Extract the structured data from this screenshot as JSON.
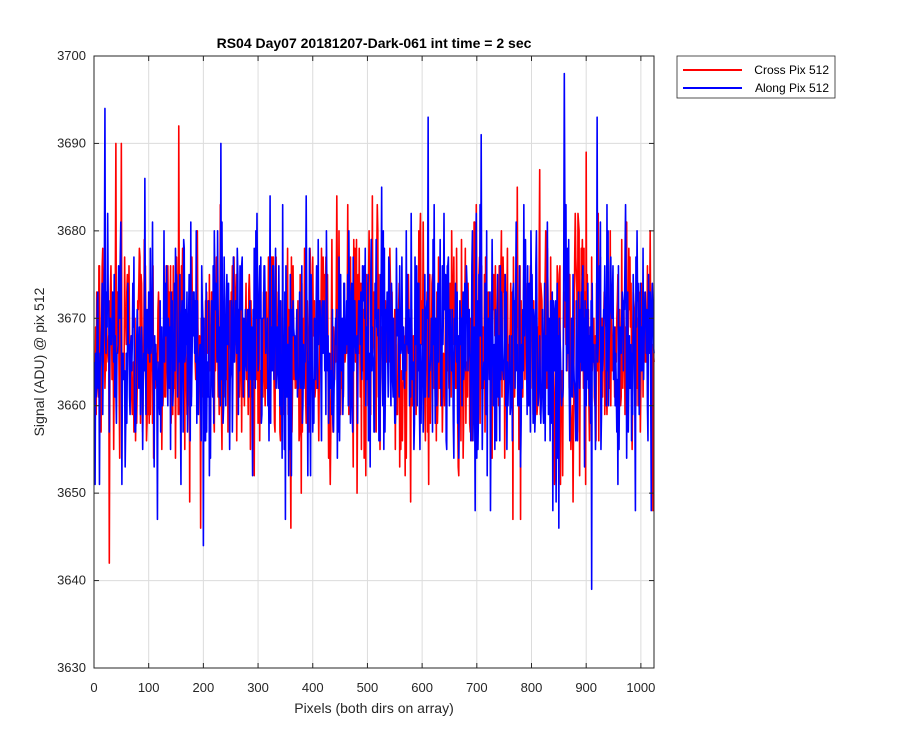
{
  "chart_data": {
    "type": "line",
    "title": "RS04 Day07 20181207-Dark-061 int time = 2 sec",
    "xlabel": "Pixels (both dirs on array)",
    "ylabel": "Signal (ADU) @ pix 512",
    "xlim": [
      0,
      1024
    ],
    "ylim": [
      3630,
      3700
    ],
    "xticks": [
      0,
      100,
      200,
      300,
      400,
      500,
      600,
      700,
      800,
      900,
      1000
    ],
    "yticks": [
      3630,
      3640,
      3650,
      3660,
      3670,
      3680,
      3690,
      3700
    ],
    "grid": true,
    "legend_position": "outside-top-right",
    "series": [
      {
        "name": "Cross Pix 512",
        "color": "#ff0000",
        "x_range": [
          1,
          1024
        ],
        "approx_mean": 3667,
        "approx_range": [
          3642,
          3692
        ],
        "key_points": [
          [
            1,
            3662
          ],
          [
            5,
            3673
          ],
          [
            28,
            3642
          ],
          [
            40,
            3690
          ],
          [
            50,
            3690
          ],
          [
            155,
            3692
          ],
          [
            780,
            3647
          ],
          [
            900,
            3689
          ]
        ]
      },
      {
        "name": "Along Pix 512",
        "color": "#0000ff",
        "x_range": [
          1,
          1024
        ],
        "approx_mean": 3667,
        "approx_range": [
          3639,
          3698
        ],
        "key_points": [
          [
            1,
            3665
          ],
          [
            20,
            3694
          ],
          [
            110,
            3653
          ],
          [
            200,
            3644
          ],
          [
            350,
            3647
          ],
          [
            640,
            3682
          ],
          [
            850,
            3646
          ],
          [
            860,
            3698
          ],
          [
            910,
            3639
          ],
          [
            920,
            3693
          ]
        ]
      }
    ]
  }
}
